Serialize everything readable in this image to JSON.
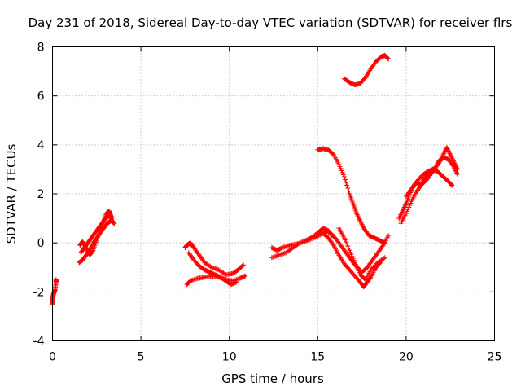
{
  "chart_data": {
    "type": "scatter",
    "title": "Day 231 of 2018, Sidereal Day-to-day VTEC variation (SDTVAR) for receiver flrs",
    "xlabel": "GPS time / hours",
    "ylabel": "SDTVAR / TECUs",
    "xlim": [
      0,
      25
    ],
    "ylim": [
      -4,
      8
    ],
    "xticks": [
      0,
      5,
      10,
      15,
      20,
      25
    ],
    "yticks": [
      -4,
      -2,
      0,
      2,
      4,
      6,
      8
    ],
    "grid": true,
    "marker": "+",
    "color": "#ff0000",
    "series": [
      {
        "name": "start",
        "x": [
          0.0,
          0.0,
          0.05,
          0.1,
          0.15,
          0.2,
          0.2
        ],
        "y": [
          -2.5,
          -2.3,
          -2.1,
          -2.0,
          -1.9,
          -1.6,
          -1.5
        ]
      },
      {
        "name": "seg1a",
        "x": [
          1.55,
          1.7,
          1.9,
          2.1,
          2.3,
          2.5,
          2.7,
          2.9,
          3.05,
          3.2,
          3.3,
          3.35
        ],
        "y": [
          -0.1,
          0.05,
          -0.2,
          -0.5,
          -0.3,
          0.1,
          0.5,
          0.9,
          1.2,
          1.3,
          1.1,
          0.9
        ]
      },
      {
        "name": "seg1b",
        "x": [
          1.5,
          1.7,
          1.9,
          2.1,
          2.3,
          2.6,
          2.9,
          3.1,
          3.3,
          3.5
        ],
        "y": [
          -0.8,
          -0.7,
          -0.5,
          -0.3,
          0.0,
          0.3,
          0.6,
          0.8,
          0.9,
          0.8
        ]
      },
      {
        "name": "seg1c",
        "x": [
          1.6,
          1.8,
          2.0,
          2.2,
          2.4,
          2.6,
          2.8,
          3.0,
          3.2,
          3.4
        ],
        "y": [
          -0.4,
          -0.2,
          0.0,
          0.2,
          0.4,
          0.6,
          0.8,
          1.0,
          1.1,
          1.05
        ]
      },
      {
        "name": "seg2a",
        "x": [
          7.5,
          7.6,
          7.8,
          8.0,
          8.3,
          8.6,
          9.0,
          9.4,
          9.8,
          10.2,
          10.5,
          10.8
        ],
        "y": [
          -0.2,
          -0.1,
          0.0,
          -0.2,
          -0.5,
          -0.8,
          -1.0,
          -1.1,
          -1.3,
          -1.25,
          -1.1,
          -0.9
        ]
      },
      {
        "name": "seg2b",
        "x": [
          7.6,
          7.8,
          8.2,
          8.6,
          9.0,
          9.4,
          9.8,
          10.2,
          10.6,
          10.9
        ],
        "y": [
          -1.7,
          -1.55,
          -1.45,
          -1.4,
          -1.35,
          -1.4,
          -1.5,
          -1.55,
          -1.45,
          -1.35
        ]
      },
      {
        "name": "seg2c",
        "x": [
          7.7,
          8.0,
          8.3,
          8.6,
          8.9,
          9.2,
          9.5,
          9.8,
          10.1,
          10.4
        ],
        "y": [
          -0.4,
          -0.7,
          -0.95,
          -1.1,
          -1.2,
          -1.3,
          -1.4,
          -1.55,
          -1.7,
          -1.6
        ]
      },
      {
        "name": "seg3a",
        "x": [
          12.4,
          12.7,
          13.0,
          13.4,
          13.8,
          14.2,
          14.6,
          15.0,
          15.3,
          15.6,
          15.8
        ],
        "y": [
          -0.2,
          -0.3,
          -0.2,
          -0.1,
          -0.05,
          0.05,
          0.2,
          0.4,
          0.6,
          0.5,
          0.3
        ]
      },
      {
        "name": "seg3b",
        "x": [
          12.4,
          12.8,
          13.2,
          13.6,
          14.0,
          14.4,
          14.8,
          15.2,
          15.5
        ],
        "y": [
          -0.6,
          -0.5,
          -0.4,
          -0.2,
          0.0,
          0.1,
          0.2,
          0.35,
          0.45
        ]
      },
      {
        "name": "seg3c",
        "x": [
          15.3,
          15.6,
          15.9,
          16.2,
          16.5,
          16.8,
          17.1,
          17.4,
          17.6,
          17.8,
          18.0,
          18.3,
          18.6
        ],
        "y": [
          0.4,
          0.2,
          -0.1,
          -0.5,
          -0.85,
          -1.1,
          -1.35,
          -1.6,
          -1.8,
          -1.6,
          -1.4,
          -1.0,
          -0.75
        ]
      },
      {
        "name": "seg3d",
        "x": [
          15.5,
          15.8,
          16.1,
          16.4,
          16.7,
          17.0,
          17.3,
          17.5,
          17.8,
          18.1,
          18.4,
          18.7,
          19.0
        ],
        "y": [
          0.5,
          0.35,
          0.1,
          -0.2,
          -0.5,
          -0.8,
          -1.05,
          -1.2,
          -1.0,
          -0.7,
          -0.4,
          -0.1,
          0.3
        ]
      },
      {
        "name": "seg3e",
        "x": [
          16.2,
          16.5,
          16.8,
          17.1,
          17.4,
          17.7,
          18.0,
          18.4,
          18.8
        ],
        "y": [
          0.6,
          0.2,
          -0.3,
          -0.8,
          -1.3,
          -1.5,
          -1.1,
          -0.8,
          -0.6
        ]
      },
      {
        "name": "seg4",
        "x": [
          15.0,
          15.3,
          15.6,
          15.9,
          16.2,
          16.5,
          16.8,
          17.0,
          17.2,
          17.4,
          17.6,
          17.9,
          18.2,
          18.5,
          18.8
        ],
        "y": [
          3.8,
          3.85,
          3.8,
          3.6,
          3.2,
          2.7,
          2.0,
          1.6,
          1.2,
          0.9,
          0.6,
          0.3,
          0.2,
          0.1,
          0.0
        ]
      },
      {
        "name": "seg5",
        "x": [
          16.5,
          16.8,
          17.1,
          17.4,
          17.7,
          18.0,
          18.3,
          18.6,
          18.8,
          19.0
        ],
        "y": [
          6.7,
          6.55,
          6.45,
          6.5,
          6.75,
          7.1,
          7.4,
          7.6,
          7.65,
          7.5
        ]
      },
      {
        "name": "seg6a",
        "x": [
          19.6,
          19.8,
          20.0,
          20.2,
          20.4,
          20.6,
          20.8,
          21.0,
          21.3,
          21.6,
          21.9,
          22.1,
          22.3,
          22.5,
          22.7,
          22.9
        ],
        "y": [
          1.0,
          1.3,
          1.6,
          2.0,
          2.3,
          2.5,
          2.3,
          2.6,
          2.8,
          3.0,
          3.3,
          3.6,
          3.9,
          3.6,
          3.3,
          3.0
        ]
      },
      {
        "name": "seg6b",
        "x": [
          19.7,
          20.0,
          20.3,
          20.6,
          20.9,
          21.2,
          21.5,
          21.8,
          22.1,
          22.4,
          22.7,
          22.9
        ],
        "y": [
          0.8,
          1.2,
          1.7,
          2.1,
          2.4,
          2.6,
          2.9,
          3.3,
          3.5,
          3.4,
          3.1,
          2.8
        ]
      },
      {
        "name": "seg6c",
        "x": [
          20.0,
          20.3,
          20.6,
          20.9,
          21.2,
          21.5,
          21.8,
          22.1,
          22.4,
          22.6
        ],
        "y": [
          1.9,
          2.2,
          2.5,
          2.75,
          2.9,
          3.0,
          2.9,
          2.7,
          2.5,
          2.35
        ]
      }
    ]
  }
}
